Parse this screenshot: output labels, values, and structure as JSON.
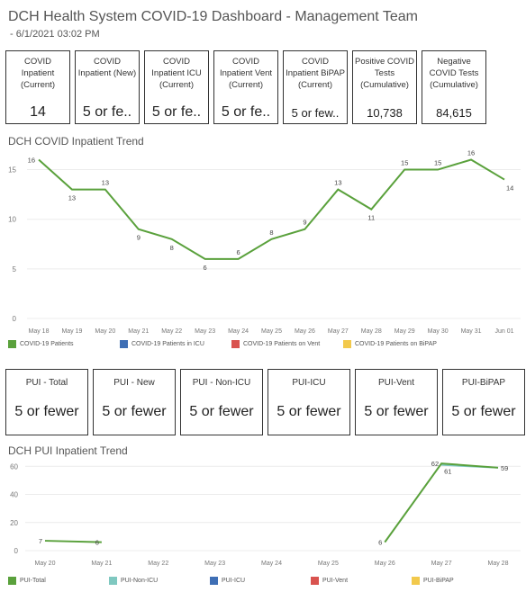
{
  "header": {
    "title": "DCH Health System COVID-19 Dashboard - Management Team",
    "subtitle": "- 6/1/2021 03:02 PM"
  },
  "kpis_top": [
    {
      "label": "COVID Inpatient (Current)",
      "value": "14"
    },
    {
      "label": "COVID Inpatient (New)",
      "value": "5 or fe.."
    },
    {
      "label": "COVID Inpatient ICU (Current)",
      "value": "5 or fe.."
    },
    {
      "label": "COVID Inpatient Vent (Current)",
      "value": "5 or fe.."
    },
    {
      "label": "COVID Inpatient BiPAP (Current)",
      "value": "5 or few.."
    },
    {
      "label": "Positive COVID Tests (Cumulative)",
      "value": "10,738"
    },
    {
      "label": "Negative COVID Tests (Cumulative)",
      "value": "84,615"
    }
  ],
  "kpis_pui": [
    {
      "label": "PUI - Total",
      "value": "5 or fewer"
    },
    {
      "label": "PUI - New",
      "value": "5 or fewer"
    },
    {
      "label": "PUI - Non-ICU",
      "value": "5 or fewer"
    },
    {
      "label": "PUI-ICU",
      "value": "5 or fewer"
    },
    {
      "label": "PUI-Vent",
      "value": "5 or fewer"
    },
    {
      "label": "PUI-BiPAP",
      "value": "5 or fewer"
    }
  ],
  "chart_data": [
    {
      "type": "line",
      "title": "DCH COVID Inpatient Trend",
      "categories": [
        "May 18",
        "May 19",
        "May 20",
        "May 21",
        "May 22",
        "May 23",
        "May 24",
        "May 25",
        "May 26",
        "May 27",
        "May 28",
        "May 29",
        "May 30",
        "May 31",
        "Jun 01"
      ],
      "yticks": [
        0,
        5,
        10,
        15
      ],
      "ylim": [
        0,
        16.5
      ],
      "series": [
        {
          "name": "COVID-19 Patients",
          "color": "#5aa13c",
          "values": [
            16,
            13,
            13,
            9,
            8,
            6,
            6,
            8,
            9,
            13,
            11,
            15,
            15,
            16,
            14
          ]
        }
      ],
      "legend": [
        {
          "name": "COVID-19 Patients",
          "color": "#5aa13c"
        },
        {
          "name": "COVID-19 Patients in ICU",
          "color": "#3f6fb5"
        },
        {
          "name": "COVID-19 Patients on Vent",
          "color": "#d9534f"
        },
        {
          "name": "COVID-19 Patients on BiPAP",
          "color": "#f2c94c"
        }
      ],
      "legend_position": "bottom"
    },
    {
      "type": "line",
      "title": "DCH PUI Inpatient Trend",
      "categories": [
        "May 20",
        "May 21",
        "May 22",
        "May 23",
        "May 24",
        "May 25",
        "May 26",
        "May 27",
        "May 28"
      ],
      "yticks": [
        0,
        20,
        40,
        60
      ],
      "ylim": [
        0,
        64
      ],
      "series": [
        {
          "name": "PUI-Total",
          "color": "#5aa13c",
          "segments": [
            [
              {
                "x": "May 20",
                "y": 7
              },
              {
                "x": "May 21",
                "y": 6
              }
            ],
            [
              {
                "x": "May 26",
                "y": 6
              },
              {
                "x": "May 27",
                "y": 62
              },
              {
                "x": "May 28",
                "y": 59
              }
            ]
          ]
        },
        {
          "name": "PUI-Non-ICU",
          "color": "#7fc8c0",
          "segments": [
            [
              {
                "x": "May 27",
                "y": 61
              },
              {
                "x": "May 28",
                "y": 59
              }
            ]
          ]
        }
      ],
      "point_labels": [
        {
          "x": "May 20",
          "y": 7,
          "text": "7",
          "anchor": "end"
        },
        {
          "x": "May 21",
          "y": 6,
          "text": "6",
          "anchor": "end"
        },
        {
          "x": "May 26",
          "y": 6,
          "text": "6",
          "anchor": "end"
        },
        {
          "x": "May 27",
          "y": 62,
          "text": "62",
          "anchor": "end"
        },
        {
          "x": "May 27",
          "y": 61,
          "text": "61",
          "anchor": "start",
          "below": true
        },
        {
          "x": "May 28",
          "y": 59,
          "text": "59",
          "anchor": "start"
        }
      ],
      "legend": [
        {
          "name": "PUI-Total",
          "color": "#5aa13c"
        },
        {
          "name": "PUI-Non-ICU",
          "color": "#7fc8c0"
        },
        {
          "name": "PUI-ICU",
          "color": "#3f6fb5"
        },
        {
          "name": "PUI-Vent",
          "color": "#d9534f"
        },
        {
          "name": "PUI-BiPAP",
          "color": "#f2c94c"
        }
      ],
      "legend_position": "bottom"
    }
  ]
}
